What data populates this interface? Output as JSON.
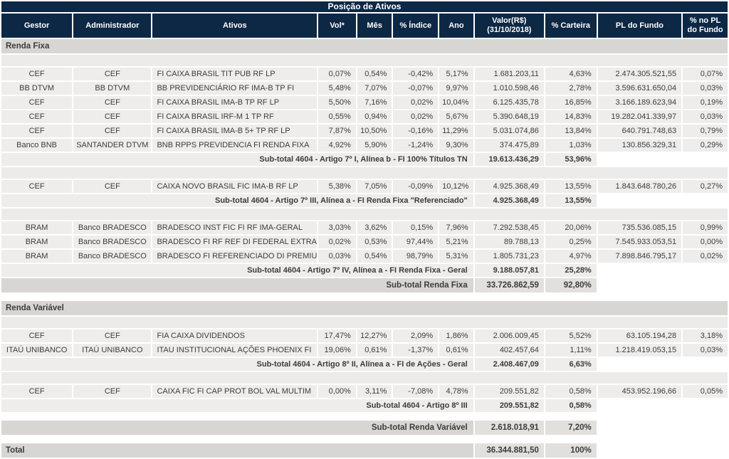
{
  "title": "Posição de Ativos",
  "colors": {
    "navy": "#0d2845",
    "row": "#eeedeb",
    "dark": "#d7d6d2",
    "darkval": "#e1e0dc",
    "spacer": "#ecebe9",
    "text": "#3c3c3c"
  },
  "columns": [
    {
      "key": "gestor",
      "label": "Gestor"
    },
    {
      "key": "administrador",
      "label": "Administrador"
    },
    {
      "key": "ativos",
      "label": "Ativos"
    },
    {
      "key": "vol",
      "label": "Vol*"
    },
    {
      "key": "mes",
      "label": "Mês"
    },
    {
      "key": "indice",
      "label": "% Índice"
    },
    {
      "key": "ano",
      "label": "Ano"
    },
    {
      "key": "valor",
      "label": "Valor(R$)\n(31/10/2018)"
    },
    {
      "key": "carteira",
      "label": "% Carteira"
    },
    {
      "key": "pl_fundo",
      "label": "PL do Fundo"
    },
    {
      "key": "pct_pl_fundo",
      "label": "% no PL\ndo Fundo"
    }
  ],
  "rows": [
    {
      "type": "section",
      "label": "Renda Fixa"
    },
    {
      "type": "spacer"
    },
    {
      "type": "data",
      "cells": [
        "CEF",
        "CEF",
        "FI CAIXA BRASIL TIT PUB RF LP",
        "0,07%",
        "0,54%",
        "-0,42%",
        "5,17%",
        "1.681.203,11",
        "4,63%",
        "2.474.305.521,55",
        "0,07%"
      ]
    },
    {
      "type": "data",
      "cells": [
        "BB DTVM",
        "BB DTVM",
        "BB PREVIDENCIÁRIO RF IMA-B TP FI",
        "5,48%",
        "7,07%",
        "-0,07%",
        "9,97%",
        "1.010.598,46",
        "2,78%",
        "3.596.631.650,04",
        "0,03%"
      ]
    },
    {
      "type": "data",
      "cells": [
        "CEF",
        "CEF",
        "FI CAIXA BRASIL IMA-B TP RF LP",
        "5,50%",
        "7,16%",
        "0,02%",
        "10,04%",
        "6.125.435,78",
        "16,85%",
        "3.166.189.623,94",
        "0,19%"
      ]
    },
    {
      "type": "data",
      "cells": [
        "CEF",
        "CEF",
        "FI CAIXA BRASIL IRF-M 1 TP RF",
        "0,55%",
        "0,94%",
        "0,02%",
        "5,67%",
        "5.390.648,19",
        "14,83%",
        "19.282.041.339,97",
        "0,03%"
      ]
    },
    {
      "type": "data",
      "cells": [
        "CEF",
        "CEF",
        "FI CAIXA BRASIL IMA-B 5+ TP RF LP",
        "7,87%",
        "10,50%",
        "-0,16%",
        "11,29%",
        "5.031.074,86",
        "13,84%",
        "640.791.748,63",
        "0,79%"
      ]
    },
    {
      "type": "data",
      "cells": [
        "Banco BNB",
        "SANTANDER DTVM",
        "BNB RPPS PREVIDENCIA FI RENDA FIXA",
        "4,92%",
        "5,90%",
        "-1,24%",
        "9,30%",
        "374.475,89",
        "1,03%",
        "130.856.329,31",
        "0,29%"
      ]
    },
    {
      "type": "subtotal",
      "label": "Sub-total 4604 - Artigo 7º I, Alínea b - FI 100% Títulos TN",
      "valor": "19.613.436,29",
      "carteira": "53,96%"
    },
    {
      "type": "spacer"
    },
    {
      "type": "data",
      "cells": [
        "CEF",
        "CEF",
        "CAIXA NOVO BRASIL FIC IMA-B RF LP",
        "5,38%",
        "7,05%",
        "-0,09%",
        "10,12%",
        "4.925.368,49",
        "13,55%",
        "1.843.648.780,26",
        "0,27%"
      ]
    },
    {
      "type": "subtotal",
      "label": "Sub-total 4604 - Artigo 7º III, Alínea a - FI Renda Fixa \"Referenciado\"",
      "valor": "4.925.368,49",
      "carteira": "13,55%"
    },
    {
      "type": "spacer"
    },
    {
      "type": "data",
      "cells": [
        "BRAM",
        "Banco BRADESCO",
        "BRADESCO INST FIC FI RF IMA-GERAL",
        "3,03%",
        "3,62%",
        "0,15%",
        "7,96%",
        "7.292.538,45",
        "20,06%",
        "735.536.085,15",
        "0,99%"
      ]
    },
    {
      "type": "data",
      "cells": [
        "BRAM",
        "Banco BRADESCO",
        "BRADESCO FI RF REF DI FEDERAL EXTRA",
        "0,02%",
        "0,53%",
        "97,44%",
        "5,21%",
        "89.788,13",
        "0,25%",
        "7.545.933.053,51",
        "0,00%"
      ]
    },
    {
      "type": "data",
      "cells": [
        "BRAM",
        "Banco BRADESCO",
        "BRADESCO FI REFERENCIADO DI PREMIUM",
        "0,03%",
        "0,54%",
        "98,79%",
        "5,31%",
        "1.805.731,23",
        "4,97%",
        "7.898.846.795,17",
        "0,02%"
      ]
    },
    {
      "type": "subtotal",
      "label": "Sub-total 4604 - Artigo 7º IV, Alínea a - FI Renda Fixa - Geral",
      "valor": "9.188.057,81",
      "carteira": "25,28%"
    },
    {
      "type": "subtotal_dark",
      "label": "Sub-total Renda Fixa",
      "valor": "33.726.862,59",
      "carteira": "92,80%"
    },
    {
      "type": "gap"
    },
    {
      "type": "section",
      "label": "Renda Variável"
    },
    {
      "type": "spacer"
    },
    {
      "type": "data",
      "cells": [
        "CEF",
        "CEF",
        "FIA CAIXA DIVIDENDOS",
        "17,47%",
        "12,27%",
        "2,09%",
        "1,86%",
        "2.006.009,45",
        "5,52%",
        "63.105.194,28",
        "3,18%"
      ]
    },
    {
      "type": "data",
      "cells": [
        "ITAÚ UNIBANCO",
        "ITAÚ UNIBANCO",
        "ITAU INSTITUCIONAL AÇÕES PHOENIX FI",
        "19,06%",
        "0,61%",
        "-1,37%",
        "0,61%",
        "402.457,64",
        "1,11%",
        "1.218.419.053,15",
        "0,03%"
      ]
    },
    {
      "type": "subtotal",
      "label": "Sub-total 4604 - Artigo 8º II, Alínea a - FI de Ações - Geral",
      "valor": "2.408.467,09",
      "carteira": "6,63%"
    },
    {
      "type": "spacer"
    },
    {
      "type": "data",
      "cells": [
        "CEF",
        "CEF",
        "CAIXA FIC FI CAP PROT BOL VAL MULTIM",
        "0,00%",
        "3,11%",
        "-7,08%",
        "4,78%",
        "209.551,82",
        "0,58%",
        "453.952.196,66",
        "0,05%"
      ]
    },
    {
      "type": "subtotal",
      "label": "Sub-total 4604 - Artigo 8º III",
      "valor": "209.551,82",
      "carteira": "0,58%"
    },
    {
      "type": "gap"
    },
    {
      "type": "subtotal_dark",
      "label": "Sub-total Renda Variável",
      "valor": "2.618.018,91",
      "carteira": "7,20%"
    },
    {
      "type": "gap"
    },
    {
      "type": "total",
      "label": "Total",
      "valor": "36.344.881,50",
      "carteira": "100%"
    }
  ]
}
